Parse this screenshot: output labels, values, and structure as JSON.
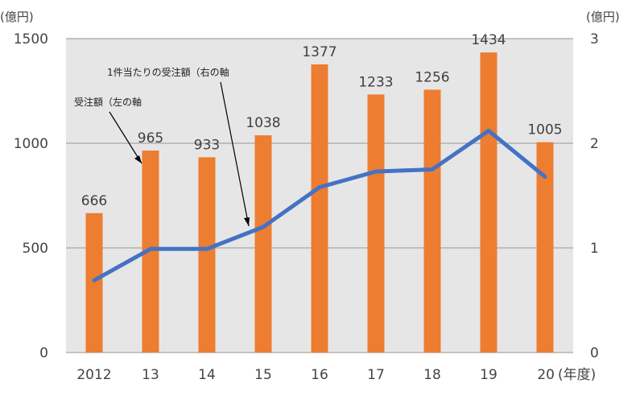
{
  "chart_data": {
    "type": "bar",
    "categories": [
      "2012",
      "13",
      "14",
      "15",
      "16",
      "17",
      "18",
      "19",
      "20"
    ],
    "x_unit": "(年度)",
    "y_left_unit": "(億円)",
    "y_right_unit": "(億円)",
    "y_left_ticks": [
      "0",
      "500",
      "1000",
      "1500"
    ],
    "y_right_ticks": [
      "0",
      "1",
      "2",
      "3"
    ],
    "ylim_left": [
      0,
      1500
    ],
    "ylim_right": [
      0,
      3
    ],
    "grid": true,
    "series": [
      {
        "name": "受注額（左の軸",
        "type": "bar",
        "axis": "left",
        "color": "#ED7D31",
        "values": [
          666,
          965,
          933,
          1038,
          1377,
          1233,
          1256,
          1434,
          1005
        ],
        "labels": [
          "666",
          "965",
          "933",
          "1038",
          "1377",
          "1233",
          "1256",
          "1434",
          "1005"
        ]
      },
      {
        "name": "1件当たりの受注額（右の軸",
        "type": "line",
        "axis": "right",
        "color": "#4472C4",
        "values": [
          0.69,
          0.99,
          0.99,
          1.2,
          1.58,
          1.73,
          1.75,
          2.12,
          1.68
        ]
      }
    ],
    "plot_background": "#E7E6E6"
  }
}
